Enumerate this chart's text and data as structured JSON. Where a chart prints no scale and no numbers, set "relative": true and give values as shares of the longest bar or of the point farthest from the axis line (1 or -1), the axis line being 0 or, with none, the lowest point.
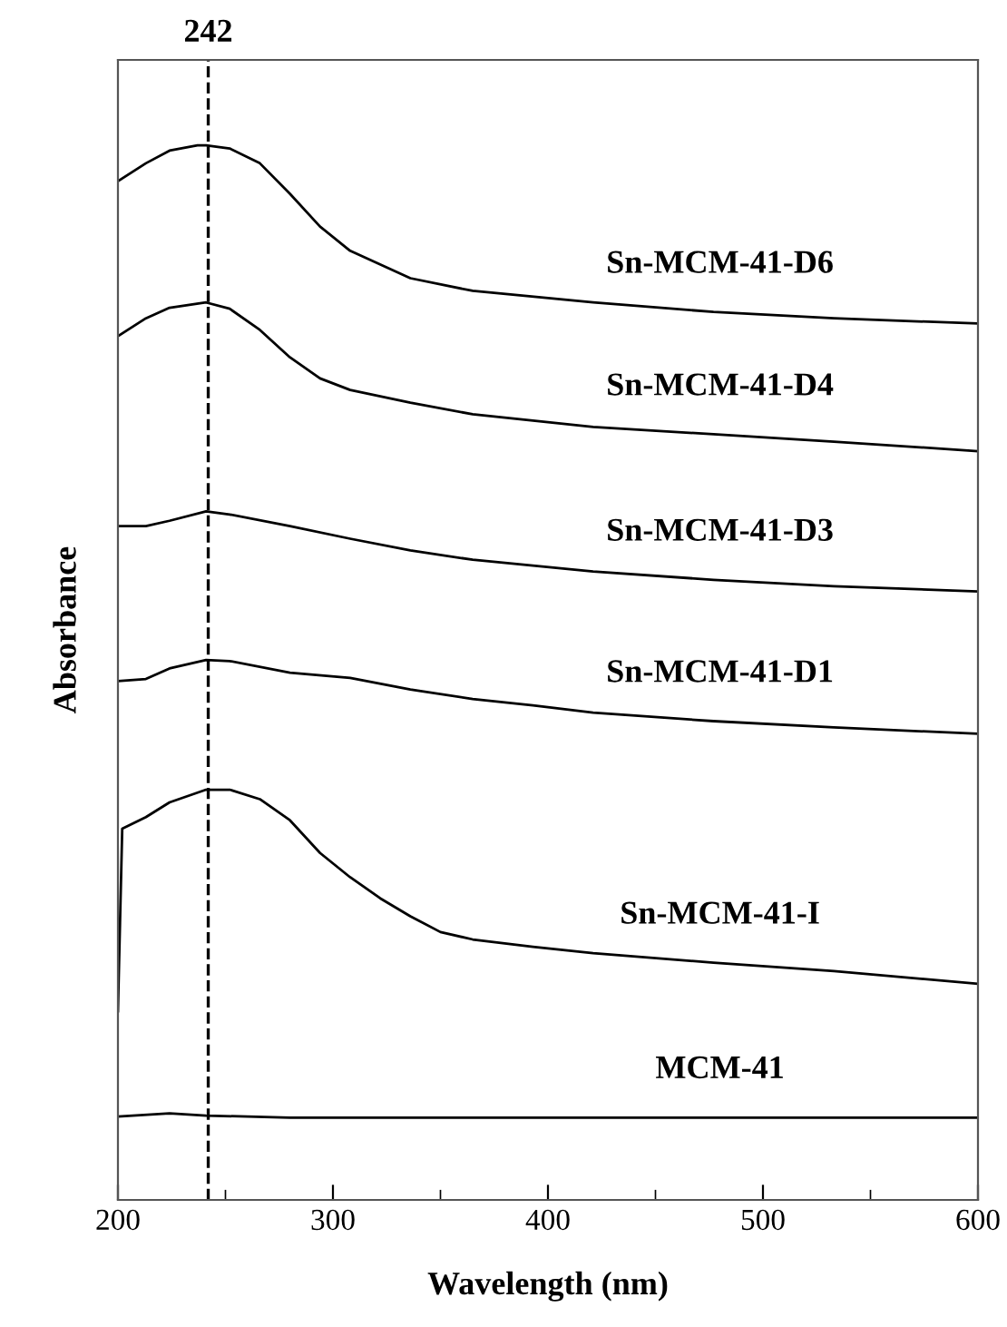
{
  "chart_data": {
    "type": "line",
    "xlabel": "Wavelength (nm)",
    "ylabel": "Absorbance",
    "relative": true,
    "xlim": [
      200,
      600
    ],
    "xticks": [
      200,
      300,
      400,
      500,
      600
    ],
    "grid": false,
    "legend": false,
    "line_style": "solid",
    "marker": "none",
    "ref_lines": [
      {
        "axis": "x",
        "value": 242,
        "label": "242",
        "color": "#000000",
        "line_style": "dashed"
      }
    ],
    "series": [
      {
        "name": "Sn-MCM-41-D6",
        "color": "#000000",
        "x": [
          200,
          213,
          224,
          237,
          241,
          252,
          266,
          280,
          294,
          308,
          336,
          365,
          421,
          477,
          533,
          600
        ],
        "values": [
          0.966,
          0.983,
          0.995,
          1.0,
          1.0,
          0.997,
          0.983,
          0.954,
          0.923,
          0.9,
          0.874,
          0.862,
          0.851,
          0.842,
          0.836,
          0.831
        ]
      },
      {
        "name": "Sn-MCM-41-D4",
        "color": "#000000",
        "x": [
          200,
          213,
          224,
          241,
          252,
          266,
          280,
          294,
          308,
          336,
          365,
          421,
          477,
          533,
          600
        ],
        "values": [
          0.819,
          0.836,
          0.846,
          0.851,
          0.845,
          0.825,
          0.799,
          0.779,
          0.768,
          0.756,
          0.745,
          0.733,
          0.726,
          0.719,
          0.71
        ]
      },
      {
        "name": "Sn-MCM-41-D3",
        "color": "#000000",
        "x": [
          200,
          213,
          224,
          241,
          252,
          280,
          308,
          336,
          365,
          421,
          477,
          533,
          600
        ],
        "values": [
          0.639,
          0.639,
          0.644,
          0.653,
          0.65,
          0.639,
          0.627,
          0.616,
          0.607,
          0.596,
          0.588,
          0.582,
          0.577
        ]
      },
      {
        "name": "Sn-MCM-41-D1",
        "color": "#000000",
        "x": [
          200,
          213,
          224,
          241,
          252,
          280,
          308,
          336,
          365,
          393,
          421,
          477,
          533,
          600
        ],
        "values": [
          0.492,
          0.494,
          0.504,
          0.512,
          0.511,
          0.5,
          0.495,
          0.484,
          0.475,
          0.469,
          0.462,
          0.454,
          0.448,
          0.442
        ]
      },
      {
        "name": "Sn-MCM-41-I",
        "color": "#000000",
        "x": [
          200,
          202,
          213,
          224,
          241,
          252,
          266,
          280,
          294,
          308,
          322,
          336,
          350,
          365,
          393,
          421,
          477,
          533,
          600
        ],
        "values": [
          0.179,
          0.352,
          0.363,
          0.377,
          0.389,
          0.389,
          0.38,
          0.36,
          0.329,
          0.306,
          0.286,
          0.269,
          0.254,
          0.247,
          0.24,
          0.234,
          0.225,
          0.217,
          0.205
        ]
      },
      {
        "name": "MCM-41",
        "color": "#000000",
        "x": [
          200,
          224,
          241,
          280,
          600
        ],
        "values": [
          0.079,
          0.082,
          0.08,
          0.078,
          0.078
        ]
      }
    ]
  }
}
